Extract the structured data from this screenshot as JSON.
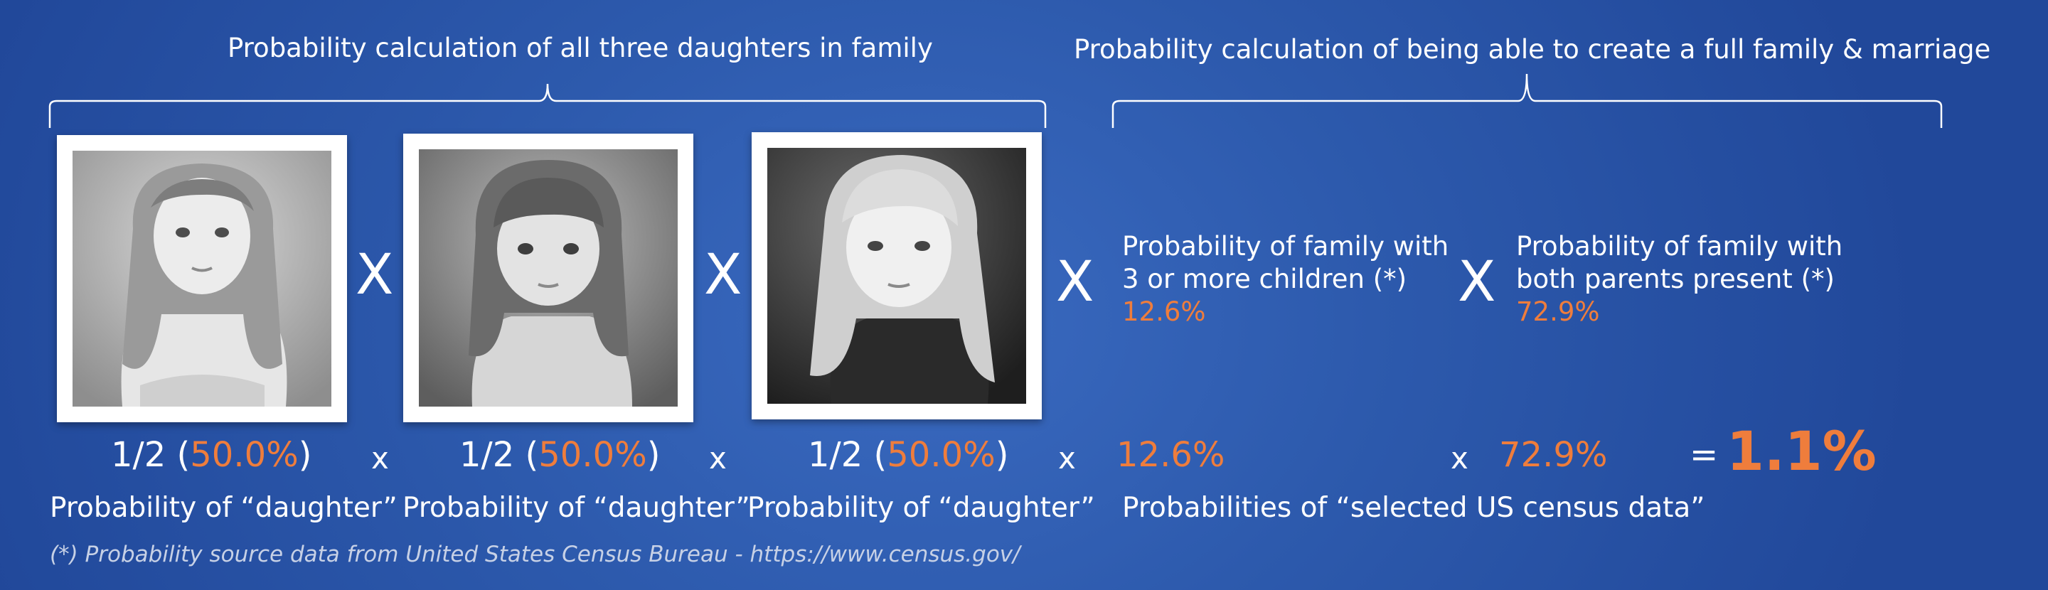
{
  "headers": {
    "daughters": "Probability calculation of all three daughters in family",
    "family": "Probability calculation of being able to create a full family & marriage"
  },
  "multiply_big": "X",
  "multiply_small": "x",
  "equals": "=",
  "criteria": [
    {
      "line1": "Probability of family with",
      "line2": "3 or more children (*)",
      "value": "12.6%"
    },
    {
      "line1": "Probability of family with",
      "line2": "both parents present (*)",
      "value": "72.9%"
    }
  ],
  "fractions": [
    {
      "prefix": "1/2 (",
      "percent": "50.0%",
      "suffix": ")"
    },
    {
      "prefix": "1/2 (",
      "percent": "50.0%",
      "suffix": ")"
    },
    {
      "prefix": "1/2 (",
      "percent": "50.0%",
      "suffix": ")"
    }
  ],
  "census_values": [
    "12.6%",
    "72.9%"
  ],
  "result": "1.1%",
  "labels": {
    "daughter": "Probability of “daughter”",
    "census": "Probabilities of “selected US census data”"
  },
  "footnote": "(*) Probability source data from United States Census Bureau - https://www.census.gov/",
  "photos": [
    "girl-photo-1",
    "girl-photo-2",
    "girl-photo-3"
  ],
  "colors": {
    "accent": "#ef7d3c",
    "background": "#2d5aad",
    "text": "#ffffff"
  }
}
